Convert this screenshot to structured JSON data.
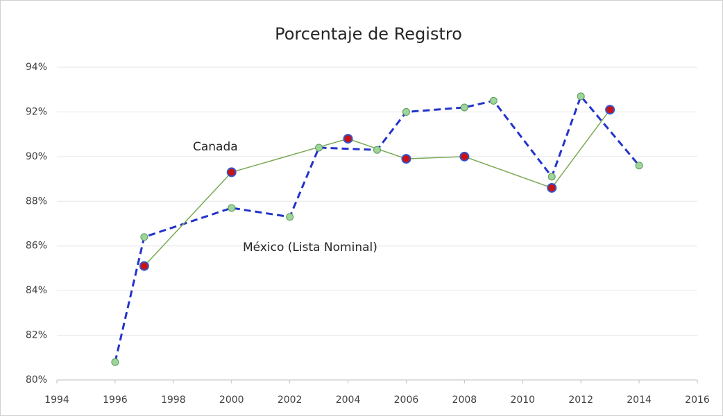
{
  "chart_data": {
    "type": "line",
    "title": "Porcentaje de Registro",
    "annotations": [
      "Canada",
      "México (Lista Nominal)"
    ],
    "xlim": [
      1994,
      2016
    ],
    "xticks": [
      1994,
      1996,
      1998,
      2000,
      2002,
      2004,
      2006,
      2008,
      2010,
      2012,
      2014,
      2016
    ],
    "ylim": [
      80,
      94
    ],
    "yticks": [
      {
        "value": 80,
        "label": "80%"
      },
      {
        "value": 82,
        "label": "82%"
      },
      {
        "value": 84,
        "label": "84%"
      },
      {
        "value": 86,
        "label": "86%"
      },
      {
        "value": 88,
        "label": "88%"
      },
      {
        "value": 90,
        "label": "90%"
      },
      {
        "value": 92,
        "label": "92%"
      },
      {
        "value": 94,
        "label": "94%"
      }
    ],
    "grid": true,
    "series": [
      {
        "name": "México (Lista Nominal)",
        "color": "#2233cc",
        "line_style": "dashed",
        "marker_color": "#9fd49a",
        "marker_edge": "#5a9a5a",
        "x": [
          1996,
          1997,
          2000,
          2002,
          2003,
          2005,
          2006,
          2008,
          2009,
          2011,
          2012,
          2014
        ],
        "values": [
          80.8,
          86.4,
          87.7,
          87.3,
          90.4,
          90.3,
          92.0,
          92.2,
          92.5,
          89.1,
          92.7,
          89.6
        ]
      },
      {
        "name": "Canada",
        "color": "#7aaa55",
        "line_style": "solid",
        "marker_color": "#cc1111",
        "marker_edge": "#3355cc",
        "x": [
          1997,
          2000,
          2004,
          2006,
          2008,
          2011,
          2013
        ],
        "values": [
          85.1,
          89.3,
          90.8,
          89.9,
          90.0,
          88.6,
          92.1
        ]
      }
    ]
  }
}
